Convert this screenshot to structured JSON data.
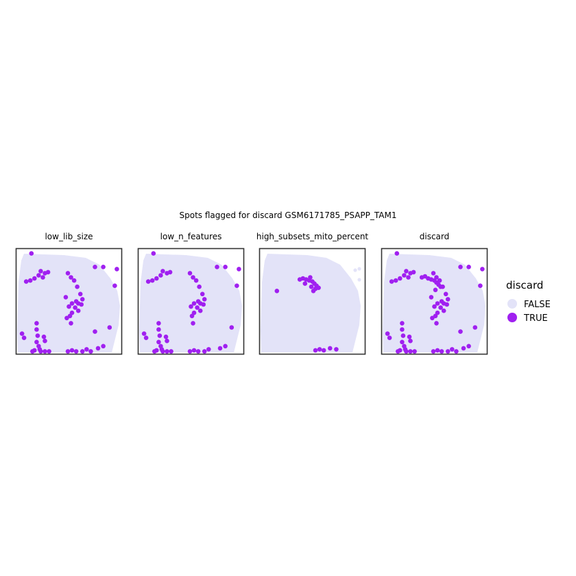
{
  "chart_data": {
    "type": "scatter",
    "title": "Spots flagged for discard GSM6171785_PSAPP_TAM1",
    "facets": [
      {
        "name": "low_lib_size"
      },
      {
        "name": "low_n_features"
      },
      {
        "name": "high_subsets_mito_percent"
      },
      {
        "name": "discard"
      }
    ],
    "legend": {
      "title": "discard",
      "placement": "right",
      "entries": [
        {
          "label": "FALSE",
          "color": "#e3e3f8"
        },
        {
          "label": "TRUE",
          "color": "#a020f0"
        }
      ]
    },
    "grid": false,
    "xlim": [
      0,
      1
    ],
    "ylim": [
      0,
      1
    ],
    "tissue_color": "#e3e3f8",
    "flag_color": "#a020f0",
    "series": [
      {
        "name": "TRUE",
        "facet": "low_lib_size",
        "points": [
          [
            0.13,
            0.97
          ],
          [
            0.74,
            0.84
          ],
          [
            0.82,
            0.84
          ],
          [
            0.95,
            0.82
          ],
          [
            0.93,
            0.66
          ],
          [
            0.08,
            0.7
          ],
          [
            0.12,
            0.71
          ],
          [
            0.16,
            0.73
          ],
          [
            0.2,
            0.76
          ],
          [
            0.22,
            0.8
          ],
          [
            0.26,
            0.78
          ],
          [
            0.29,
            0.79
          ],
          [
            0.24,
            0.74
          ],
          [
            0.48,
            0.78
          ],
          [
            0.51,
            0.74
          ],
          [
            0.54,
            0.71
          ],
          [
            0.57,
            0.65
          ],
          [
            0.6,
            0.58
          ],
          [
            0.62,
            0.53
          ],
          [
            0.58,
            0.49
          ],
          [
            0.61,
            0.48
          ],
          [
            0.55,
            0.45
          ],
          [
            0.58,
            0.42
          ],
          [
            0.52,
            0.4
          ],
          [
            0.5,
            0.37
          ],
          [
            0.47,
            0.35
          ],
          [
            0.49,
            0.46
          ],
          [
            0.52,
            0.49
          ],
          [
            0.56,
            0.51
          ],
          [
            0.51,
            0.3
          ],
          [
            0.46,
            0.55
          ],
          [
            0.18,
            0.3
          ],
          [
            0.18,
            0.24
          ],
          [
            0.19,
            0.18
          ],
          [
            0.18,
            0.12
          ],
          [
            0.2,
            0.08
          ],
          [
            0.21,
            0.05
          ],
          [
            0.16,
            0.04
          ],
          [
            0.14,
            0.03
          ],
          [
            0.22,
            0.03
          ],
          [
            0.26,
            0.03
          ],
          [
            0.3,
            0.03
          ],
          [
            0.06,
            0.16
          ],
          [
            0.04,
            0.2
          ],
          [
            0.25,
            0.17
          ],
          [
            0.26,
            0.13
          ],
          [
            0.48,
            0.03
          ],
          [
            0.52,
            0.04
          ],
          [
            0.56,
            0.03
          ],
          [
            0.62,
            0.03
          ],
          [
            0.66,
            0.05
          ],
          [
            0.7,
            0.03
          ],
          [
            0.77,
            0.06
          ],
          [
            0.82,
            0.08
          ],
          [
            0.88,
            0.26
          ],
          [
            0.74,
            0.22
          ]
        ]
      },
      {
        "name": "TRUE",
        "facet": "low_n_features",
        "points": [
          [
            0.13,
            0.97
          ],
          [
            0.74,
            0.84
          ],
          [
            0.82,
            0.84
          ],
          [
            0.95,
            0.82
          ],
          [
            0.93,
            0.66
          ],
          [
            0.08,
            0.7
          ],
          [
            0.12,
            0.71
          ],
          [
            0.16,
            0.73
          ],
          [
            0.2,
            0.76
          ],
          [
            0.22,
            0.8
          ],
          [
            0.26,
            0.78
          ],
          [
            0.29,
            0.79
          ],
          [
            0.48,
            0.78
          ],
          [
            0.51,
            0.74
          ],
          [
            0.54,
            0.71
          ],
          [
            0.57,
            0.65
          ],
          [
            0.6,
            0.58
          ],
          [
            0.62,
            0.53
          ],
          [
            0.58,
            0.49
          ],
          [
            0.61,
            0.48
          ],
          [
            0.55,
            0.45
          ],
          [
            0.58,
            0.42
          ],
          [
            0.52,
            0.4
          ],
          [
            0.5,
            0.37
          ],
          [
            0.49,
            0.46
          ],
          [
            0.52,
            0.49
          ],
          [
            0.56,
            0.51
          ],
          [
            0.51,
            0.3
          ],
          [
            0.18,
            0.3
          ],
          [
            0.18,
            0.24
          ],
          [
            0.19,
            0.18
          ],
          [
            0.18,
            0.12
          ],
          [
            0.2,
            0.08
          ],
          [
            0.21,
            0.05
          ],
          [
            0.16,
            0.04
          ],
          [
            0.14,
            0.03
          ],
          [
            0.22,
            0.03
          ],
          [
            0.26,
            0.03
          ],
          [
            0.3,
            0.03
          ],
          [
            0.06,
            0.16
          ],
          [
            0.04,
            0.2
          ],
          [
            0.25,
            0.17
          ],
          [
            0.26,
            0.13
          ],
          [
            0.48,
            0.03
          ],
          [
            0.52,
            0.04
          ],
          [
            0.56,
            0.03
          ],
          [
            0.62,
            0.03
          ],
          [
            0.66,
            0.05
          ],
          [
            0.77,
            0.06
          ],
          [
            0.82,
            0.08
          ],
          [
            0.88,
            0.26
          ]
        ]
      },
      {
        "name": "TRUE",
        "facet": "high_subsets_mito_percent",
        "points": [
          [
            0.37,
            0.72
          ],
          [
            0.4,
            0.73
          ],
          [
            0.43,
            0.72
          ],
          [
            0.46,
            0.71
          ],
          [
            0.49,
            0.7
          ],
          [
            0.51,
            0.68
          ],
          [
            0.53,
            0.66
          ],
          [
            0.55,
            0.64
          ],
          [
            0.52,
            0.63
          ],
          [
            0.48,
            0.65
          ],
          [
            0.5,
            0.61
          ],
          [
            0.42,
            0.68
          ],
          [
            0.47,
            0.74
          ],
          [
            0.15,
            0.61
          ],
          [
            0.52,
            0.04
          ],
          [
            0.56,
            0.05
          ],
          [
            0.6,
            0.04
          ],
          [
            0.66,
            0.06
          ],
          [
            0.72,
            0.05
          ]
        ]
      },
      {
        "name": "TRUE",
        "facet": "discard",
        "points": [
          [
            0.13,
            0.97
          ],
          [
            0.74,
            0.84
          ],
          [
            0.82,
            0.84
          ],
          [
            0.95,
            0.82
          ],
          [
            0.93,
            0.66
          ],
          [
            0.08,
            0.7
          ],
          [
            0.12,
            0.71
          ],
          [
            0.16,
            0.73
          ],
          [
            0.2,
            0.76
          ],
          [
            0.22,
            0.8
          ],
          [
            0.26,
            0.78
          ],
          [
            0.29,
            0.79
          ],
          [
            0.24,
            0.74
          ],
          [
            0.37,
            0.74
          ],
          [
            0.4,
            0.75
          ],
          [
            0.43,
            0.73
          ],
          [
            0.46,
            0.72
          ],
          [
            0.49,
            0.71
          ],
          [
            0.51,
            0.69
          ],
          [
            0.53,
            0.67
          ],
          [
            0.55,
            0.65
          ],
          [
            0.5,
            0.62
          ],
          [
            0.48,
            0.78
          ],
          [
            0.51,
            0.74
          ],
          [
            0.54,
            0.71
          ],
          [
            0.57,
            0.65
          ],
          [
            0.6,
            0.58
          ],
          [
            0.62,
            0.53
          ],
          [
            0.58,
            0.49
          ],
          [
            0.61,
            0.48
          ],
          [
            0.55,
            0.45
          ],
          [
            0.58,
            0.42
          ],
          [
            0.52,
            0.4
          ],
          [
            0.5,
            0.37
          ],
          [
            0.47,
            0.35
          ],
          [
            0.49,
            0.46
          ],
          [
            0.52,
            0.49
          ],
          [
            0.56,
            0.51
          ],
          [
            0.51,
            0.3
          ],
          [
            0.46,
            0.55
          ],
          [
            0.18,
            0.3
          ],
          [
            0.18,
            0.24
          ],
          [
            0.19,
            0.18
          ],
          [
            0.18,
            0.12
          ],
          [
            0.2,
            0.08
          ],
          [
            0.21,
            0.05
          ],
          [
            0.16,
            0.04
          ],
          [
            0.14,
            0.03
          ],
          [
            0.22,
            0.03
          ],
          [
            0.26,
            0.03
          ],
          [
            0.3,
            0.03
          ],
          [
            0.06,
            0.16
          ],
          [
            0.04,
            0.2
          ],
          [
            0.25,
            0.17
          ],
          [
            0.26,
            0.13
          ],
          [
            0.48,
            0.03
          ],
          [
            0.52,
            0.04
          ],
          [
            0.56,
            0.03
          ],
          [
            0.62,
            0.03
          ],
          [
            0.66,
            0.05
          ],
          [
            0.7,
            0.03
          ],
          [
            0.77,
            0.06
          ],
          [
            0.82,
            0.08
          ],
          [
            0.88,
            0.26
          ],
          [
            0.74,
            0.22
          ]
        ]
      }
    ]
  }
}
